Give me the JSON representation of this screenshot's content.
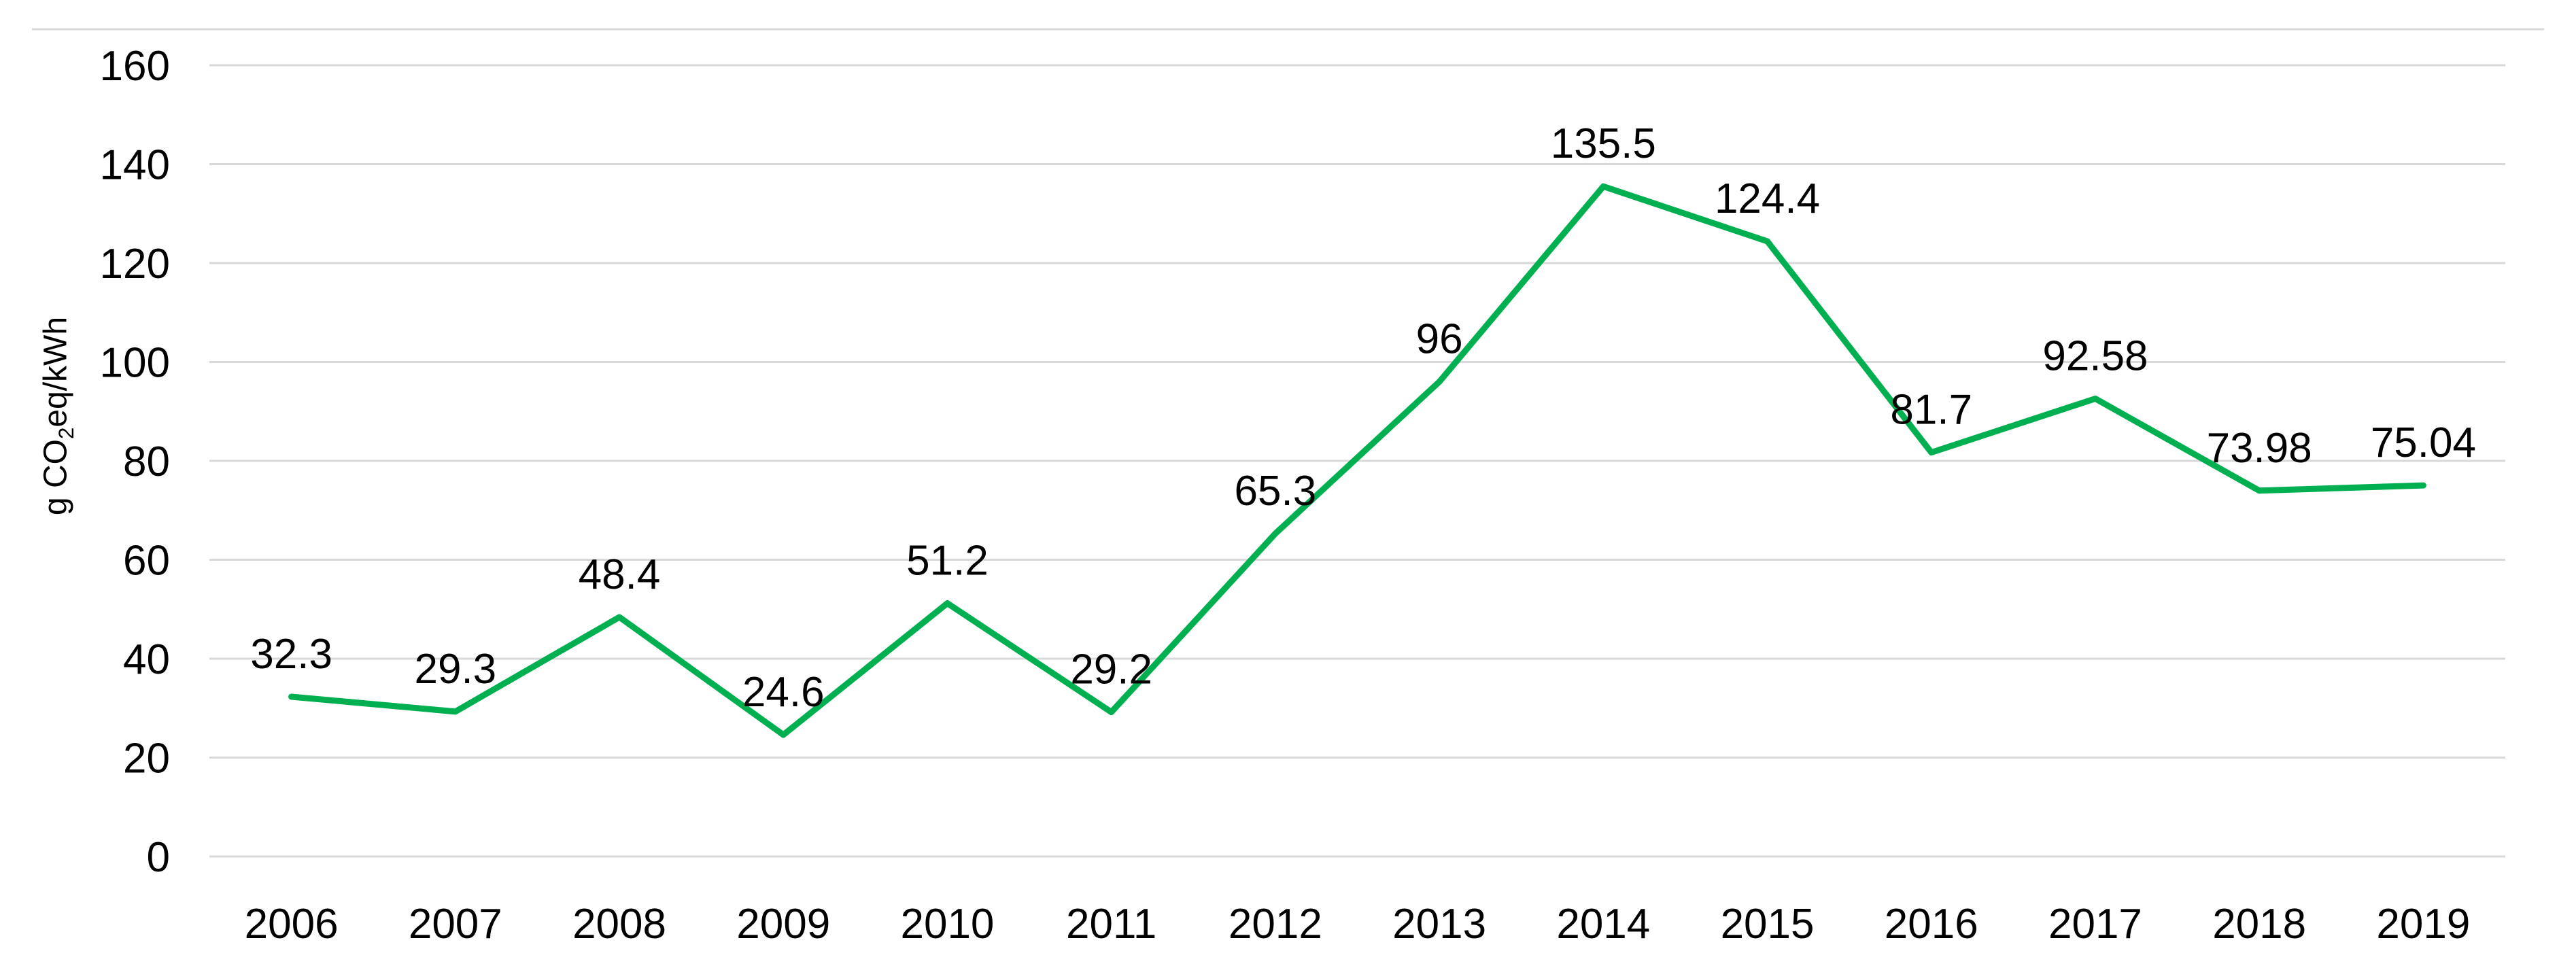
{
  "figure": {
    "y_axis_title": {
      "full": "g CO₂eq/kWh",
      "prefix": "g CO",
      "subscript": "2",
      "suffix": "eq/kWh"
    }
  },
  "chart_data": {
    "type": "line",
    "title": "",
    "xlabel": "",
    "ylabel": "g CO₂eq/kWh",
    "categories": [
      "2006",
      "2007",
      "2008",
      "2009",
      "2010",
      "2011",
      "2012",
      "2013",
      "2014",
      "2015",
      "2016",
      "2017",
      "2018",
      "2019"
    ],
    "series": [
      {
        "name": "g CO₂eq/kWh",
        "values": [
          32.3,
          29.3,
          48.4,
          24.6,
          51.2,
          29.2,
          65.3,
          96,
          135.5,
          124.4,
          81.7,
          92.58,
          73.98,
          75.04
        ],
        "data_labels": [
          "32.3",
          "29.3",
          "48.4",
          "24.6",
          "51.2",
          "29.2",
          "65.3",
          "96",
          "135.5",
          "124.4",
          "81.7",
          "92.58",
          "73.98",
          "75.04"
        ]
      }
    ],
    "ylim": [
      0,
      160
    ],
    "ytick_step": 20,
    "yticks": [
      "0",
      "20",
      "40",
      "60",
      "80",
      "100",
      "120",
      "140",
      "160"
    ],
    "grid": "horizontal",
    "legend": "none",
    "data_labels_shown": true,
    "colors": {
      "line": "#00B050",
      "gridline": "#D9D9D9",
      "top_border": "#D9D9D9",
      "text": "#000000",
      "background": "#FFFFFF"
    }
  }
}
